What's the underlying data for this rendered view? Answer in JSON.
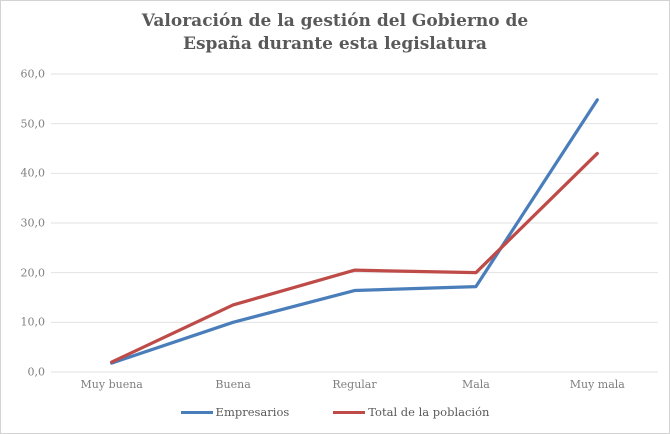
{
  "chart_data": {
    "type": "line",
    "title": "Valoración de la gestión del Gobierno de España durante esta legislatura",
    "categories": [
      "Muy buena",
      "Buena",
      "Regular",
      "Mala",
      "Muy mala"
    ],
    "series": [
      {
        "name": "Empresarios",
        "color": "#4a7ebb",
        "values": [
          1.8,
          10.0,
          16.4,
          17.2,
          54.8
        ]
      },
      {
        "name": "Total de la población",
        "color": "#be4b48",
        "values": [
          2.0,
          13.5,
          20.5,
          20.0,
          44.0
        ]
      }
    ],
    "xlabel": "",
    "ylabel": "",
    "ylim": [
      0,
      60
    ],
    "y_tick_step": 10,
    "y_tick_labels": [
      "0,0",
      "10,0",
      "20,0",
      "30,0",
      "40,0",
      "50,0",
      "60,0"
    ],
    "grid": true,
    "legend_position": "bottom"
  },
  "colors": {
    "title_text": "#595959",
    "axis_text": "#7f7f7f",
    "gridline": "#e2e2e2",
    "frame_border": "#d3d3d3",
    "background": "#ffffff"
  }
}
